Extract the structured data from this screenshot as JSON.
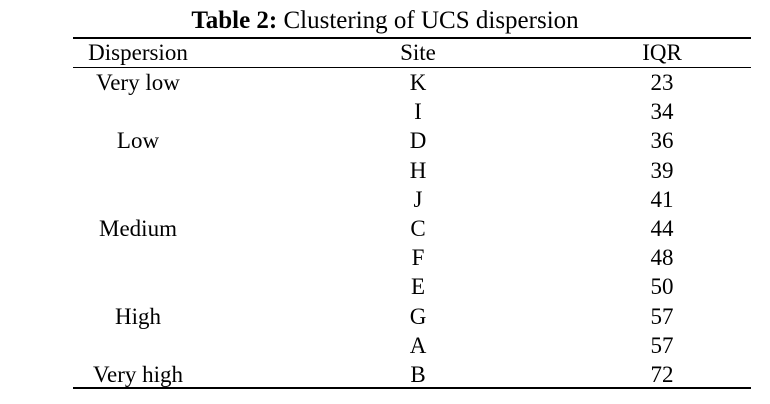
{
  "table": {
    "title_label": "Table 2:",
    "title_text": "Clustering of UCS dispersion",
    "headers": [
      "Dispersion",
      "Site",
      "IQR"
    ],
    "groups": [
      {
        "dispersion": "Very low",
        "rows": [
          [
            "K",
            "23"
          ]
        ]
      },
      {
        "dispersion": "Low",
        "rows": [
          [
            "I",
            "34"
          ],
          [
            "D",
            "36"
          ],
          [
            "H",
            "39"
          ]
        ]
      },
      {
        "dispersion": "Medium",
        "rows": [
          [
            "J",
            "41"
          ],
          [
            "C",
            "44"
          ],
          [
            "F",
            "48"
          ]
        ]
      },
      {
        "dispersion": "High",
        "rows": [
          [
            "E",
            "50"
          ],
          [
            "G",
            "57"
          ],
          [
            "A",
            "57"
          ]
        ]
      },
      {
        "dispersion": "Very high",
        "rows": [
          [
            "B",
            "72"
          ]
        ]
      }
    ]
  }
}
